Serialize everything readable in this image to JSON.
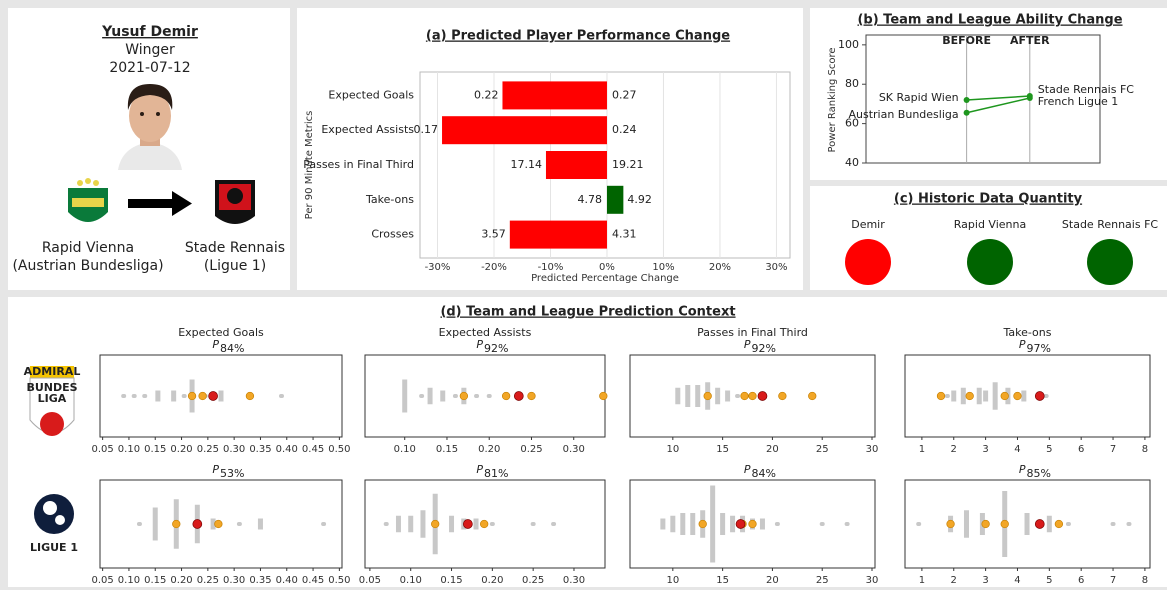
{
  "player": {
    "name": "Yusuf Demir",
    "position": "Winger",
    "date": "2021-07-12",
    "from": {
      "club": "Rapid Vienna",
      "league": "(Austrian Bundesliga)"
    },
    "to": {
      "club": "Stade Rennais",
      "league": "(Ligue 1)"
    }
  },
  "historic": {
    "title": "(c) Historic Data Quantity",
    "items": [
      {
        "label": "Demir",
        "color": "#ff0000"
      },
      {
        "label": "Rapid Vienna",
        "color": "#006400"
      },
      {
        "label": "Stade Rennais FC",
        "color": "#006400"
      }
    ]
  },
  "context": {
    "title": "(d) Team and League Prediction Context",
    "columns": [
      "Expected Goals",
      "Expected Assists",
      "Passes in Final Third",
      "Take-ons"
    ],
    "percentile_symbol": "P",
    "logos": [
      {
        "texts": [
          "ADMIRAL",
          "BUNDES",
          "LIGA"
        ]
      },
      {
        "texts": [
          "LIGUE 1"
        ]
      }
    ],
    "marker_colors": {
      "others": "#c8c8c8",
      "team": "#f2a626",
      "player": "#d81b1b"
    }
  },
  "chart_data": [
    {
      "type": "bar",
      "title": "(a) Predicted Player Performance Change",
      "xlabel": "Predicted Percentage Change",
      "ylabel": "Per 90 Minute Metrics",
      "categories": [
        "Expected Goals",
        "Expected Assists",
        "Passes in Final Third",
        "Take-ons",
        "Crosses"
      ],
      "values": [
        -18.5,
        -29.2,
        -10.8,
        2.9,
        -17.2
      ],
      "predicted": [
        0.22,
        0.17,
        17.14,
        4.92,
        3.57
      ],
      "current": [
        0.27,
        0.24,
        19.21,
        4.78,
        4.31
      ],
      "xlim": [
        -33.1,
        32.4
      ],
      "xticks": [
        {
          "value": -30,
          "label": "-30%"
        },
        {
          "value": -20,
          "label": "-20%"
        },
        {
          "value": -10,
          "label": "-10%"
        },
        {
          "value": 0,
          "label": "0%"
        },
        {
          "value": 10,
          "label": "10%"
        },
        {
          "value": 20,
          "label": "20%"
        },
        {
          "value": 30,
          "label": "30%"
        }
      ],
      "grid": true,
      "colors": {
        "decrease": "#ff0000",
        "increase": "#006400",
        "current": "#808080"
      }
    },
    {
      "type": "line",
      "title": "(b) Team and League Ability Change",
      "ylabel": "Power Ranking Score",
      "categories": [
        "BEFORE",
        "AFTER"
      ],
      "series": [
        {
          "color": "#1e961e",
          "labels": [
            "SK Rapid Wien",
            "Stade Rennais FC"
          ],
          "values": [
            72,
            74
          ]
        },
        {
          "color": "#1e961e",
          "labels": [
            "Austrian Bundesliga",
            "French Ligue 1"
          ],
          "values": [
            65.5,
            73
          ]
        }
      ],
      "ylim": [
        40,
        105
      ],
      "yticks": [
        40,
        60,
        80,
        100
      ]
    },
    {
      "type": "strip",
      "percentile": "84%",
      "xlim": [
        0.045,
        0.505
      ],
      "xticks": [
        0.05,
        {
          "value": 0.1,
          "label": "0.10"
        },
        0.15,
        {
          "value": 0.2,
          "label": "0.20"
        },
        0.25,
        {
          "value": 0.3,
          "label": "0.30"
        },
        0.35,
        {
          "value": 0.4,
          "label": "0.40"
        },
        0.45,
        {
          "value": 0.5,
          "label": "0.50"
        }
      ],
      "others": [
        0.09,
        0.11,
        0.13,
        0.155,
        0.185,
        0.205,
        0.22,
        0.245,
        0.275,
        0.39
      ],
      "other_counts": [
        1,
        1,
        1,
        2,
        2,
        1,
        6,
        1,
        2,
        1
      ],
      "team": [
        0.22,
        0.24,
        0.33
      ],
      "player": 0.26
    },
    {
      "type": "strip",
      "percentile": "92%",
      "xlim": [
        0.053,
        0.337
      ],
      "xticks": [
        {
          "value": 0.1,
          "label": "0.10"
        },
        0.15,
        {
          "value": 0.2,
          "label": "0.20"
        },
        0.25,
        {
          "value": 0.3,
          "label": "0.30"
        }
      ],
      "others": [
        0.1,
        0.12,
        0.13,
        0.145,
        0.16,
        0.17,
        0.185,
        0.2
      ],
      "other_counts": [
        6,
        1,
        3,
        2,
        1,
        3,
        1,
        1
      ],
      "team": [
        0.17,
        0.22,
        0.25,
        0.335
      ],
      "player": 0.235
    },
    {
      "type": "strip",
      "percentile": "92%",
      "xlim": [
        5.7,
        30.3
      ],
      "xticks": [
        10,
        15,
        20,
        25,
        30
      ],
      "others": [
        10.5,
        11.5,
        12.5,
        13.5,
        14.5,
        15.5,
        16.5
      ],
      "other_counts": [
        3,
        4,
        4,
        5,
        3,
        2,
        1
      ],
      "team": [
        13.5,
        17.2,
        18,
        21,
        24
      ],
      "player": 19
    },
    {
      "type": "strip",
      "percentile": "97%",
      "xlim": [
        0.47,
        8.16
      ],
      "xticks": [
        1,
        2,
        3,
        4,
        5,
        6,
        7,
        8
      ],
      "others": [
        1.8,
        2.0,
        2.3,
        2.8,
        3.0,
        3.3,
        3.7,
        4.2,
        4.9
      ],
      "other_counts": [
        1,
        2,
        3,
        3,
        2,
        5,
        3,
        2,
        1
      ],
      "team": [
        1.6,
        2.5,
        3.6,
        4.0
      ],
      "player": 4.7
    },
    {
      "type": "strip",
      "percentile": "53%",
      "xlim": [
        0.045,
        0.505
      ],
      "xticks": [
        0.05,
        {
          "value": 0.1,
          "label": "0.10"
        },
        0.15,
        {
          "value": 0.2,
          "label": "0.20"
        },
        0.25,
        {
          "value": 0.3,
          "label": "0.30"
        },
        0.35,
        {
          "value": 0.4,
          "label": "0.40"
        },
        0.45,
        {
          "value": 0.5,
          "label": "0.50"
        }
      ],
      "others": [
        0.12,
        0.15,
        0.19,
        0.23,
        0.26,
        0.31,
        0.35,
        0.47
      ],
      "other_counts": [
        1,
        6,
        9,
        7,
        2,
        1,
        2,
        1
      ],
      "team": [
        0.19,
        0.27
      ],
      "player": 0.23
    },
    {
      "type": "strip",
      "percentile": "81%",
      "xlim": [
        0.044,
        0.338
      ],
      "xticks": [
        0.05,
        {
          "value": 0.1,
          "label": "0.10"
        },
        0.15,
        {
          "value": 0.2,
          "label": "0.20"
        },
        0.25,
        {
          "value": 0.3,
          "label": "0.30"
        }
      ],
      "others": [
        0.07,
        0.085,
        0.1,
        0.115,
        0.13,
        0.15,
        0.165,
        0.18,
        0.2,
        0.25,
        0.275
      ],
      "other_counts": [
        1,
        3,
        3,
        5,
        11,
        3,
        2,
        2,
        1,
        1,
        1
      ],
      "team": [
        0.13,
        0.19
      ],
      "player": 0.17
    },
    {
      "type": "strip",
      "percentile": "84%",
      "xlim": [
        5.7,
        30.3
      ],
      "xticks": [
        10,
        15,
        20,
        25,
        30
      ],
      "others": [
        9,
        10,
        11,
        12,
        13,
        14,
        15,
        16,
        17,
        18,
        19,
        20.5,
        25,
        27.5
      ],
      "other_counts": [
        2,
        3,
        4,
        4,
        5,
        14,
        4,
        3,
        3,
        2,
        2,
        1,
        1,
        1
      ],
      "team": [
        13,
        17,
        18
      ],
      "player": 16.8
    },
    {
      "type": "strip",
      "percentile": "85%",
      "xlim": [
        0.47,
        8.16
      ],
      "xticks": [
        1,
        2,
        3,
        4,
        5,
        6,
        7,
        8
      ],
      "others": [
        0.9,
        1.9,
        2.4,
        2.9,
        3.6,
        4.3,
        5.0,
        5.6,
        7.0,
        7.5
      ],
      "other_counts": [
        1,
        3,
        5,
        4,
        12,
        4,
        3,
        1,
        1,
        1
      ],
      "team": [
        1.9,
        3.0,
        3.6,
        5.3
      ],
      "player": 4.7
    }
  ]
}
